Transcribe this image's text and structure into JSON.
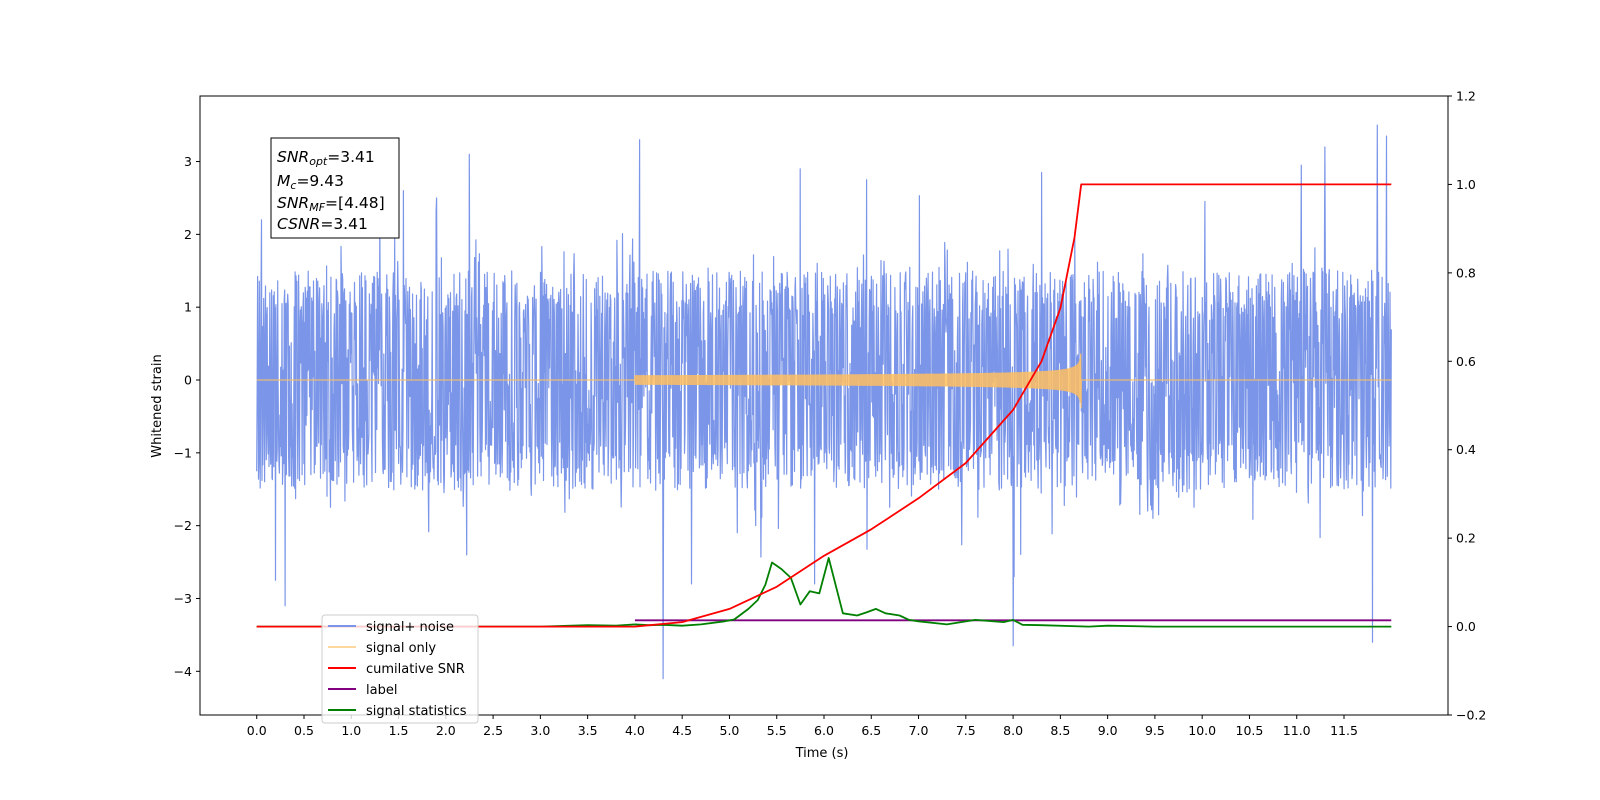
{
  "chart_data": {
    "type": "line",
    "xlabel": "Time (s)",
    "ylabel": "Whitened strain",
    "xlim": [
      -0.6,
      12.6
    ],
    "ylim": [
      -4.6,
      3.9
    ],
    "ylim_right": [
      -0.2,
      1.2
    ],
    "x_ticks": [
      "0.0",
      "0.5",
      "1.0",
      "1.5",
      "2.0",
      "2.5",
      "3.0",
      "3.5",
      "4.0",
      "4.5",
      "5.0",
      "5.5",
      "6.0",
      "6.5",
      "7.0",
      "7.5",
      "8.0",
      "8.5",
      "9.0",
      "9.5",
      "10.0",
      "10.5",
      "11.0",
      "11.5"
    ],
    "y_ticks": [
      "3",
      "2",
      "1",
      "0",
      "−1",
      "−2",
      "−3",
      "−4"
    ],
    "y_ticks_right": [
      "1.2",
      "1.0",
      "0.8",
      "0.6",
      "0.4",
      "0.2",
      "0.0",
      "−0.2"
    ],
    "grid": false,
    "legend_position": "lower-left",
    "annotation": {
      "snr_opt": {
        "main": "SNR",
        "sub": "opt",
        "value": "=3.41"
      },
      "mc": {
        "main": "M",
        "sub": "c",
        "value": "=9.43"
      },
      "snr_mf": {
        "main": "SNR",
        "sub": "MF",
        "value": "=[4.48]"
      },
      "csnr": {
        "main": "CSNR",
        "value": "=3.41"
      }
    },
    "series": [
      {
        "name": "signal+ noise",
        "color": "#7b96e8",
        "axis": "left",
        "x_range": [
          0.0,
          12.0
        ],
        "typical_amplitude": 1.5,
        "peaks": [
          [
            0.05,
            2.2
          ],
          [
            0.2,
            -2.75
          ],
          [
            0.3,
            -3.1
          ],
          [
            1.55,
            2.6
          ],
          [
            1.9,
            2.5
          ],
          [
            2.25,
            3.1
          ],
          [
            4.05,
            3.3
          ],
          [
            4.3,
            -4.1
          ],
          [
            4.6,
            -2.8
          ],
          [
            5.75,
            2.9
          ],
          [
            5.9,
            -2.8
          ],
          [
            6.45,
            2.75
          ],
          [
            8.0,
            -3.65
          ],
          [
            8.3,
            2.85
          ],
          [
            11.05,
            2.95
          ],
          [
            11.3,
            3.2
          ],
          [
            11.8,
            -3.6
          ],
          [
            11.85,
            3.5
          ],
          [
            11.95,
            3.35
          ]
        ]
      },
      {
        "name": "signal only",
        "color": "#ffbf60",
        "axis": "left",
        "merger_time": 8.72,
        "peak_amplitude": 0.4,
        "start_time": 4.0
      },
      {
        "name": "cumilative SNR",
        "color": "#ff0000",
        "axis": "right",
        "x": [
          0.0,
          4.0,
          4.5,
          5.0,
          5.5,
          6.0,
          6.5,
          7.0,
          7.5,
          8.0,
          8.3,
          8.5,
          8.65,
          8.72,
          12.0
        ],
        "y": [
          0.0,
          0.0,
          0.01,
          0.04,
          0.09,
          0.16,
          0.22,
          0.29,
          0.37,
          0.49,
          0.6,
          0.72,
          0.88,
          1.0,
          1.0
        ]
      },
      {
        "name": "label",
        "color": "#800080",
        "axis": "left",
        "x": [
          4.0,
          12.0
        ],
        "y": [
          -3.3,
          -3.3
        ]
      },
      {
        "name": "signal statistics",
        "color": "#008000",
        "axis": "right",
        "x": [
          0.0,
          0.5,
          1.0,
          1.5,
          2.0,
          2.5,
          3.0,
          3.5,
          3.8,
          4.0,
          4.15,
          4.3,
          4.5,
          4.7,
          4.95,
          5.05,
          5.2,
          5.3,
          5.38,
          5.45,
          5.55,
          5.65,
          5.75,
          5.85,
          5.95,
          6.05,
          6.2,
          6.35,
          6.45,
          6.55,
          6.65,
          6.8,
          6.9,
          7.0,
          7.3,
          7.6,
          7.9,
          8.0,
          8.1,
          8.3,
          8.8,
          9.0,
          9.5,
          12.0
        ],
        "y": [
          0.0,
          0.0,
          0.0,
          0.0,
          0.0,
          0.0,
          0.0,
          0.003,
          0.002,
          0.005,
          0.003,
          0.004,
          0.002,
          0.005,
          0.012,
          0.016,
          0.04,
          0.06,
          0.095,
          0.145,
          0.13,
          0.11,
          0.05,
          0.08,
          0.075,
          0.155,
          0.03,
          0.025,
          0.032,
          0.04,
          0.03,
          0.025,
          0.015,
          0.012,
          0.005,
          0.015,
          0.01,
          0.015,
          0.004,
          0.003,
          0.0,
          0.002,
          0.0,
          0.0
        ]
      }
    ]
  }
}
